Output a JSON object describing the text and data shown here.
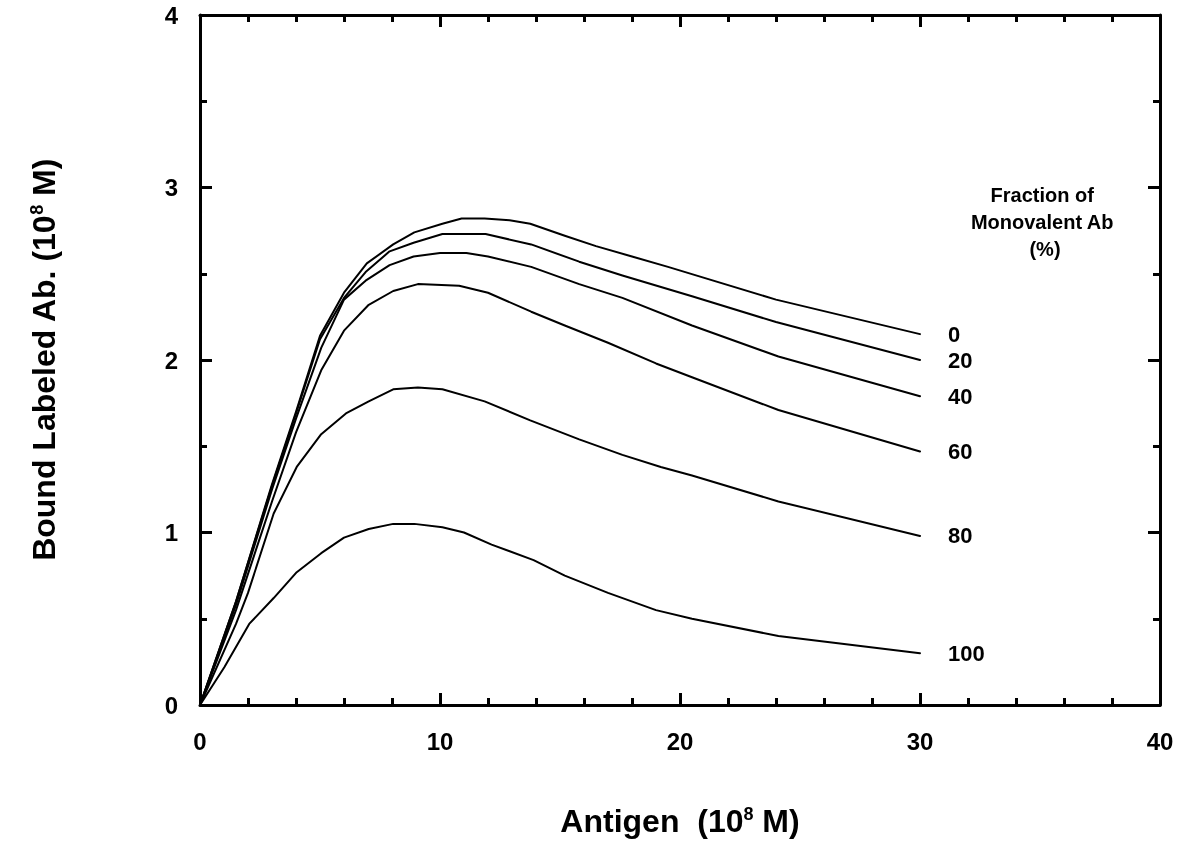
{
  "chart_data": {
    "type": "line",
    "xlabel": "Antigen  (10$^{8}$ M)",
    "ylabel": "Bound Labeled Ab. (10$^{8}$ M)",
    "legend_title": "Fraction of Monovalent Ab (%)",
    "xlim": [
      0,
      40
    ],
    "xticks": [
      0,
      10,
      20,
      30,
      40
    ],
    "ylim": [
      0,
      4
    ],
    "yticks": [
      0,
      1,
      2,
      3,
      4
    ],
    "grid": false,
    "legend": false,
    "marker": "none",
    "line_style": "solid",
    "series": [
      {
        "name": "0",
        "color": "#000000",
        "x": [
          0,
          1.5,
          3,
          4,
          5,
          6,
          6.95,
          8.05,
          8.93,
          10.1,
          10.9,
          11.86,
          12.9,
          13.76,
          15.2,
          16.5,
          18,
          19.5,
          24,
          30
        ],
        "values": [
          0,
          0.6,
          1.28,
          1.7,
          2.14,
          2.39,
          2.56,
          2.67,
          2.74,
          2.79,
          2.82,
          2.82,
          2.81,
          2.79,
          2.72,
          2.66,
          2.6,
          2.54,
          2.35,
          2.15
        ]
      },
      {
        "name": "20",
        "color": "#000000",
        "x": [
          0,
          1.5,
          3,
          4,
          5,
          6,
          6.9,
          7.9,
          8.9,
          10.1,
          11.9,
          13.8,
          15.8,
          17.6,
          20.5,
          24,
          30
        ],
        "values": [
          0,
          0.6,
          1.27,
          1.69,
          2.12,
          2.36,
          2.51,
          2.63,
          2.68,
          2.73,
          2.73,
          2.67,
          2.57,
          2.49,
          2.37,
          2.22,
          2
        ]
      },
      {
        "name": "40",
        "color": "#000000",
        "x": [
          0,
          1.5,
          3,
          4,
          5.05,
          6,
          6.9,
          7.9,
          8.9,
          10,
          11.1,
          12,
          13.8,
          15.8,
          17.6,
          20.5,
          24.1,
          30
        ],
        "values": [
          0,
          0.58,
          1.25,
          1.66,
          2.07,
          2.35,
          2.46,
          2.55,
          2.6,
          2.62,
          2.62,
          2.6,
          2.54,
          2.44,
          2.36,
          2.2,
          2.02,
          1.79
        ]
      },
      {
        "name": "60",
        "color": "#000000",
        "x": [
          0,
          1.5,
          3,
          4,
          5.05,
          6,
          7.03,
          8.05,
          9.08,
          10.8,
          12,
          13.8,
          15.2,
          17,
          19,
          20.5,
          24.1,
          30
        ],
        "values": [
          0,
          0.55,
          1.18,
          1.58,
          1.94,
          2.17,
          2.32,
          2.4,
          2.44,
          2.43,
          2.39,
          2.28,
          2.2,
          2.1,
          1.98,
          1.9,
          1.71,
          1.47
        ]
      },
      {
        "name": "80",
        "color": "#000000",
        "x": [
          0,
          1.5,
          2,
          3.07,
          4.03,
          5.05,
          6.08,
          7.03,
          8.05,
          9.08,
          10.1,
          11.86,
          13.76,
          15.8,
          17.6,
          19.2,
          20.5,
          24.1,
          30
        ],
        "values": [
          0,
          0.47,
          0.65,
          1.11,
          1.38,
          1.57,
          1.69,
          1.76,
          1.83,
          1.84,
          1.83,
          1.76,
          1.65,
          1.54,
          1.45,
          1.38,
          1.33,
          1.18,
          0.98
        ]
      },
      {
        "name": "100",
        "color": "#000000",
        "x": [
          0,
          1.02,
          2.05,
          3.07,
          4.03,
          5.05,
          6,
          7.03,
          8.05,
          8.93,
          10.1,
          11,
          12.15,
          13.9,
          15.2,
          17,
          19,
          20.5,
          24.1,
          30
        ],
        "values": [
          0,
          0.22,
          0.47,
          0.62,
          0.77,
          0.88,
          0.97,
          1.02,
          1.05,
          1.05,
          1.03,
          1,
          0.93,
          0.84,
          0.75,
          0.65,
          0.55,
          0.5,
          0.4,
          0.3
        ]
      }
    ]
  }
}
